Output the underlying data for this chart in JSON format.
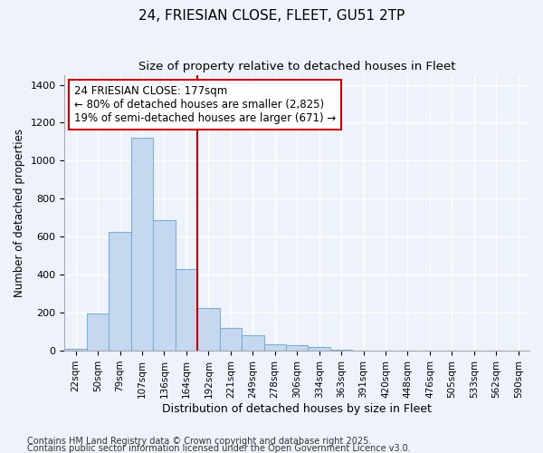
{
  "title1": "24, FRIESIAN CLOSE, FLEET, GU51 2TP",
  "title2": "Size of property relative to detached houses in Fleet",
  "xlabel": "Distribution of detached houses by size in Fleet",
  "ylabel": "Number of detached properties",
  "categories": [
    "22sqm",
    "50sqm",
    "79sqm",
    "107sqm",
    "136sqm",
    "164sqm",
    "192sqm",
    "221sqm",
    "249sqm",
    "278sqm",
    "306sqm",
    "334sqm",
    "363sqm",
    "391sqm",
    "420sqm",
    "448sqm",
    "476sqm",
    "505sqm",
    "533sqm",
    "562sqm",
    "590sqm"
  ],
  "values": [
    10,
    195,
    625,
    1120,
    685,
    430,
    225,
    120,
    80,
    35,
    27,
    18,
    5,
    2,
    1,
    0,
    0,
    0,
    0,
    0,
    0
  ],
  "bar_color": "#c5d8f0",
  "bar_edge_color": "#7bafd4",
  "vline_x": 5.5,
  "vline_color": "#cc0000",
  "annotation_text": "24 FRIESIAN CLOSE: 177sqm\n← 80% of detached houses are smaller (2,825)\n19% of semi-detached houses are larger (671) →",
  "ylim": [
    0,
    1450
  ],
  "yticks": [
    0,
    200,
    400,
    600,
    800,
    1000,
    1200,
    1400
  ],
  "bg_color": "#eef2fb",
  "grid_color": "#ffffff",
  "footnote1": "Contains HM Land Registry data © Crown copyright and database right 2025.",
  "footnote2": "Contains public sector information licensed under the Open Government Licence v3.0.",
  "title1_fontsize": 11,
  "title2_fontsize": 9.5,
  "tick_fontsize": 7.5,
  "xlabel_fontsize": 9,
  "ylabel_fontsize": 8.5,
  "annotation_fontsize": 8.5,
  "footnote_fontsize": 7
}
